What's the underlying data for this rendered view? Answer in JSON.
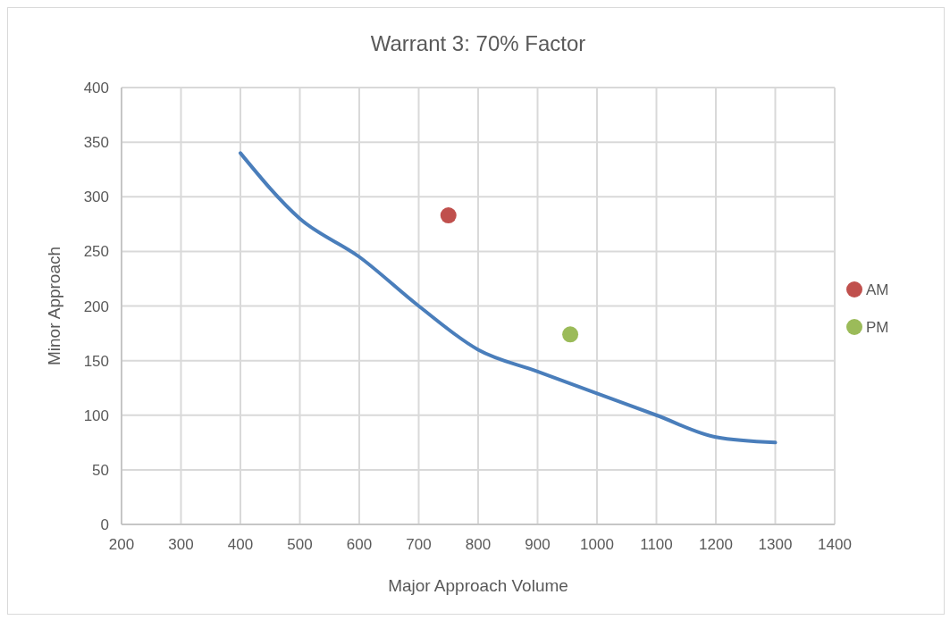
{
  "chart_data": {
    "type": "line",
    "title": "Warrant 3: 70% Factor",
    "xlabel": "Major Approach Volume",
    "ylabel": "Minor Approach",
    "xlim": [
      200,
      1400
    ],
    "xticks": [
      200,
      300,
      400,
      500,
      600,
      700,
      800,
      900,
      1000,
      1100,
      1200,
      1300,
      1400
    ],
    "ylim": [
      0,
      400
    ],
    "yticks": [
      0,
      50,
      100,
      150,
      200,
      250,
      300,
      350,
      400
    ],
    "grid": true,
    "legend": "right",
    "series": [
      {
        "color": "#4a7ebb",
        "x": [
          400,
          500,
          600,
          700,
          800,
          900,
          1000,
          1100,
          1200,
          1300
        ],
        "values": [
          340,
          280,
          245,
          200,
          160,
          140,
          120,
          100,
          80,
          75
        ]
      },
      {
        "type": "scatter",
        "name": "AM",
        "color": "#c0504d",
        "marker": "circle",
        "x": [
          750
        ],
        "values": [
          283
        ]
      },
      {
        "type": "scatter",
        "name": "PM",
        "color": "#9bbb59",
        "marker": "circle",
        "x": [
          955
        ],
        "values": [
          174
        ]
      }
    ]
  }
}
